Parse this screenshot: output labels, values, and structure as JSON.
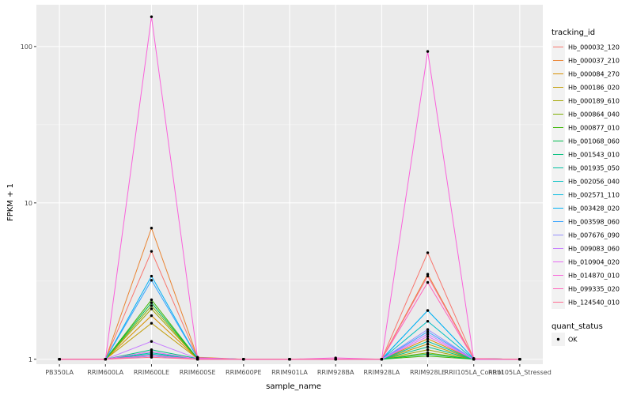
{
  "chart_data": {
    "type": "line",
    "xlabel": "sample_name",
    "ylabel": "FPKM + 1",
    "yscale": "log10",
    "ylim": [
      0.93,
      185
    ],
    "y_ticks": [
      1,
      10,
      100
    ],
    "y_tick_labels": [
      "1",
      "10",
      "100"
    ],
    "grid": true,
    "legend_position": "right",
    "categories": [
      "PB350LA",
      "RRIM600LA",
      "RRIM600LE",
      "RRIM600SE",
      "RRIM600PE",
      "RRIM901LA",
      "RRIM928BA",
      "RRIM928LA",
      "RRIM928LE",
      "RRII105LA_Control",
      "RRII105LA_Stressed"
    ],
    "legend_title": "tracking_id",
    "series": [
      {
        "name": "Hb_000032_120",
        "color": "#F8766D",
        "values": [
          1,
          1,
          4.9,
          1.02,
          1,
          1,
          1,
          1,
          4.8,
          1.01,
          1
        ]
      },
      {
        "name": "Hb_000037_210",
        "color": "#EA8331",
        "values": [
          1,
          1,
          6.9,
          1.03,
          1,
          1,
          1,
          1,
          3.5,
          1.01,
          1
        ]
      },
      {
        "name": "Hb_000084_270",
        "color": "#D89000",
        "values": [
          1,
          1,
          1.9,
          1.01,
          1,
          1,
          1,
          1,
          1.35,
          1,
          1
        ]
      },
      {
        "name": "Hb_000186_020",
        "color": "#C09B00",
        "values": [
          1,
          1,
          1.7,
          1.01,
          1,
          1,
          1,
          1,
          1.25,
          1,
          1
        ]
      },
      {
        "name": "Hb_000189_610",
        "color": "#A3A500",
        "values": [
          1,
          1,
          2.1,
          1.01,
          1,
          1,
          1,
          1,
          1.15,
          1,
          1
        ]
      },
      {
        "name": "Hb_000864_040",
        "color": "#7CAE00",
        "values": [
          1,
          1,
          2.2,
          1.01,
          1,
          1,
          1,
          1,
          1.1,
          1,
          1
        ]
      },
      {
        "name": "Hb_000877_010",
        "color": "#39B600",
        "values": [
          1,
          1,
          2.4,
          1.01,
          1,
          1,
          1,
          1,
          1.05,
          1,
          1
        ]
      },
      {
        "name": "Hb_001068_060",
        "color": "#00BB4E",
        "values": [
          1,
          1,
          2.3,
          1.01,
          1,
          1,
          1,
          1,
          1.08,
          1,
          1
        ]
      },
      {
        "name": "Hb_001543_010",
        "color": "#00BF7D",
        "values": [
          1,
          1,
          1.15,
          1.01,
          1,
          1,
          1,
          1,
          1.2,
          1,
          1
        ]
      },
      {
        "name": "Hb_001935_050",
        "color": "#00C1A3",
        "values": [
          1,
          1,
          1.1,
          1,
          1,
          1,
          1,
          1,
          1.3,
          1,
          1
        ]
      },
      {
        "name": "Hb_002056_040",
        "color": "#00BFC4",
        "values": [
          1,
          1,
          1.08,
          1,
          1,
          1,
          1,
          1,
          1.75,
          1,
          1
        ]
      },
      {
        "name": "Hb_002571_110",
        "color": "#00BAE0",
        "values": [
          1,
          1,
          1.05,
          1,
          1,
          1,
          1,
          1,
          2.05,
          1.01,
          1
        ]
      },
      {
        "name": "Hb_003428_020",
        "color": "#00B0F6",
        "values": [
          1,
          1,
          3.4,
          1.02,
          1,
          1,
          1,
          1,
          2.05,
          1.01,
          1
        ]
      },
      {
        "name": "Hb_003598_060",
        "color": "#35A2FF",
        "values": [
          1,
          1,
          3.2,
          1.02,
          1,
          1,
          1,
          1,
          1.5,
          1,
          1
        ]
      },
      {
        "name": "Hb_007676_090",
        "color": "#9590FF",
        "values": [
          1,
          1,
          1.05,
          1,
          1,
          1,
          1,
          1,
          1.55,
          1,
          1
        ]
      },
      {
        "name": "Hb_009083_060",
        "color": "#C77CFF",
        "values": [
          1,
          1,
          1.3,
          1.01,
          1,
          1,
          1,
          1,
          1.45,
          1,
          1
        ]
      },
      {
        "name": "Hb_010904_020",
        "color": "#E76BF3",
        "values": [
          1,
          1,
          1.12,
          1,
          1,
          1,
          1,
          1,
          1.4,
          1,
          1
        ]
      },
      {
        "name": "Hb_014870_010",
        "color": "#FA62DB",
        "values": [
          1,
          1,
          155,
          1.02,
          1,
          1,
          1.02,
          1,
          93,
          1,
          1
        ]
      },
      {
        "name": "Hb_099335_020",
        "color": "#FF62BC",
        "values": [
          1,
          1,
          1.06,
          1,
          1,
          1,
          1,
          1,
          3.1,
          1.01,
          1
        ]
      },
      {
        "name": "Hb_124540_010",
        "color": "#FF6C91",
        "values": [
          1,
          1,
          1.03,
          1,
          1,
          1,
          1,
          1,
          3.4,
          1.01,
          1
        ]
      }
    ],
    "shape_legend_title": "quant_status",
    "shape_legend_items": [
      "OK"
    ]
  }
}
